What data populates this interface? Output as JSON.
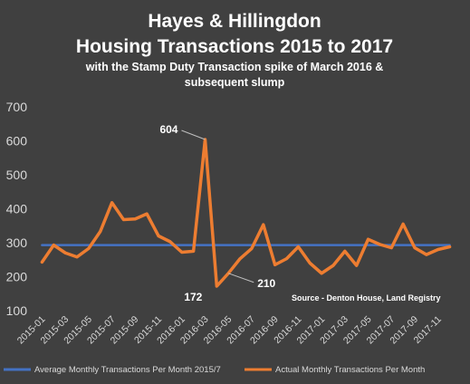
{
  "chart_data": {
    "type": "line",
    "title_line1": "Hayes & Hillingdon",
    "title_line2": "Housing Transactions 2015 to 2017",
    "subtitle_line1": "with the Stamp Duty Transaction spike of March 2016 &",
    "subtitle_line2": "subsequent slump",
    "source": "Source - Denton House, Land Registry",
    "ylim": [
      100,
      700
    ],
    "yticks": [
      100,
      200,
      300,
      400,
      500,
      600,
      700
    ],
    "x": [
      "2015-01",
      "2015-02",
      "2015-03",
      "2015-04",
      "2015-05",
      "2015-06",
      "2015-07",
      "2015-08",
      "2015-09",
      "2015-10",
      "2015-11",
      "2015-12",
      "2016-01",
      "2016-02",
      "2016-03",
      "2016-04",
      "2016-05",
      "2016-06",
      "2016-07",
      "2016-08",
      "2016-09",
      "2016-10",
      "2016-11",
      "2016-12",
      "2017-01",
      "2017-02",
      "2017-03",
      "2017-04",
      "2017-05",
      "2017-06",
      "2017-07",
      "2017-08",
      "2017-09",
      "2017-10",
      "2017-11",
      "2017-12"
    ],
    "xticks": [
      "2015-01",
      "2015-03",
      "2015-05",
      "2015-07",
      "2015-09",
      "2015-11",
      "2016-01",
      "2016-03",
      "2016-05",
      "2016-07",
      "2016-09",
      "2016-11",
      "2017-01",
      "2017-03",
      "2017-05",
      "2017-07",
      "2017-09",
      "2017-11"
    ],
    "series": [
      {
        "name": "Average Monthly Transactions Per Month 2015/7",
        "color": "#4472c4",
        "values": [
          293,
          293,
          293,
          293,
          293,
          293,
          293,
          293,
          293,
          293,
          293,
          293,
          293,
          293,
          293,
          293,
          293,
          293,
          293,
          293,
          293,
          293,
          293,
          293,
          293,
          293,
          293,
          293,
          293,
          293,
          293,
          293,
          293,
          293,
          293,
          293
        ]
      },
      {
        "name": "Actual Monthly Transactions Per Month",
        "color": "#ed7d31",
        "values": [
          243,
          293,
          270,
          258,
          283,
          333,
          418,
          368,
          370,
          385,
          320,
          303,
          272,
          275,
          604,
          172,
          210,
          253,
          283,
          353,
          235,
          253,
          288,
          240,
          210,
          233,
          275,
          233,
          310,
          295,
          285,
          355,
          285,
          265,
          280,
          288
        ]
      }
    ],
    "annotations": [
      {
        "label": "604",
        "x": "2016-03",
        "value": 604
      },
      {
        "label": "172",
        "x": "2016-04",
        "value": 172
      },
      {
        "label": "210",
        "x": "2016-05",
        "value": 210
      }
    ],
    "legend_position": "bottom",
    "grid": false
  }
}
